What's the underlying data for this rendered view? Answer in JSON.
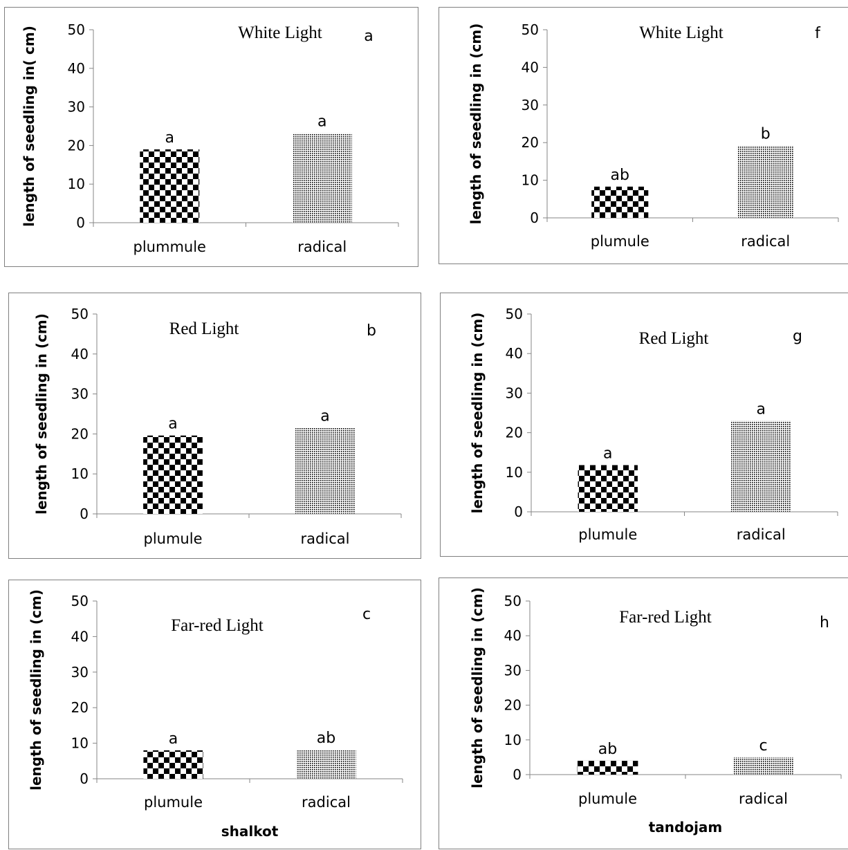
{
  "chart_data": [
    {
      "type": "bar",
      "panel_id": "a",
      "title": "White Light",
      "ylabel": "length of seedling in( cm)",
      "xlabel": "",
      "categories": [
        "plummule",
        "radical"
      ],
      "values": [
        19,
        23.2
      ],
      "significance": [
        "a",
        "a"
      ],
      "ylim": [
        0,
        50
      ],
      "yticks": [
        0,
        10,
        20,
        30,
        40,
        50
      ]
    },
    {
      "type": "bar",
      "panel_id": "b",
      "title": "Red Light",
      "ylabel": "length of seedling in (cm)",
      "xlabel": "",
      "categories": [
        "plumule",
        "radical"
      ],
      "values": [
        19.6,
        21.5
      ],
      "significance": [
        "a",
        "a"
      ],
      "ylim": [
        0,
        50
      ],
      "yticks": [
        0,
        10,
        20,
        30,
        40,
        50
      ]
    },
    {
      "type": "bar",
      "panel_id": "c",
      "title": "Far-red Light",
      "ylabel": "length of seedling in  (cm)",
      "xlabel": "shalkot",
      "categories": [
        "plumule",
        "radical"
      ],
      "values": [
        8,
        8.2
      ],
      "significance": [
        "a",
        "ab"
      ],
      "ylim": [
        0,
        50
      ],
      "yticks": [
        0,
        10,
        20,
        30,
        40,
        50
      ]
    },
    {
      "type": "bar",
      "panel_id": "f",
      "title": "White Light",
      "ylabel": "length of seedling in (cm)",
      "xlabel": "",
      "categories": [
        "plumule",
        "radical"
      ],
      "values": [
        8.3,
        19.2
      ],
      "significance": [
        "ab",
        "b"
      ],
      "ylim": [
        0,
        50
      ],
      "yticks": [
        0,
        10,
        20,
        30,
        40,
        50
      ]
    },
    {
      "type": "bar",
      "panel_id": "g",
      "title": "Red Light",
      "ylabel": "length of seedling in (cm)",
      "xlabel": "",
      "categories": [
        "plumule",
        "radical"
      ],
      "values": [
        11.8,
        23
      ],
      "significance": [
        "a",
        "a"
      ],
      "ylim": [
        0,
        50
      ],
      "yticks": [
        0,
        10,
        20,
        30,
        40,
        50
      ]
    },
    {
      "type": "bar",
      "panel_id": "h",
      "title": "Far-red Light",
      "ylabel": "length of seedling in (cm)",
      "xlabel": "tandojam",
      "categories": [
        "plumule",
        "radical"
      ],
      "values": [
        4,
        5
      ],
      "significance": [
        "ab",
        "c"
      ],
      "ylim": [
        0,
        50
      ],
      "yticks": [
        0,
        10,
        20,
        30,
        40,
        50
      ]
    }
  ]
}
